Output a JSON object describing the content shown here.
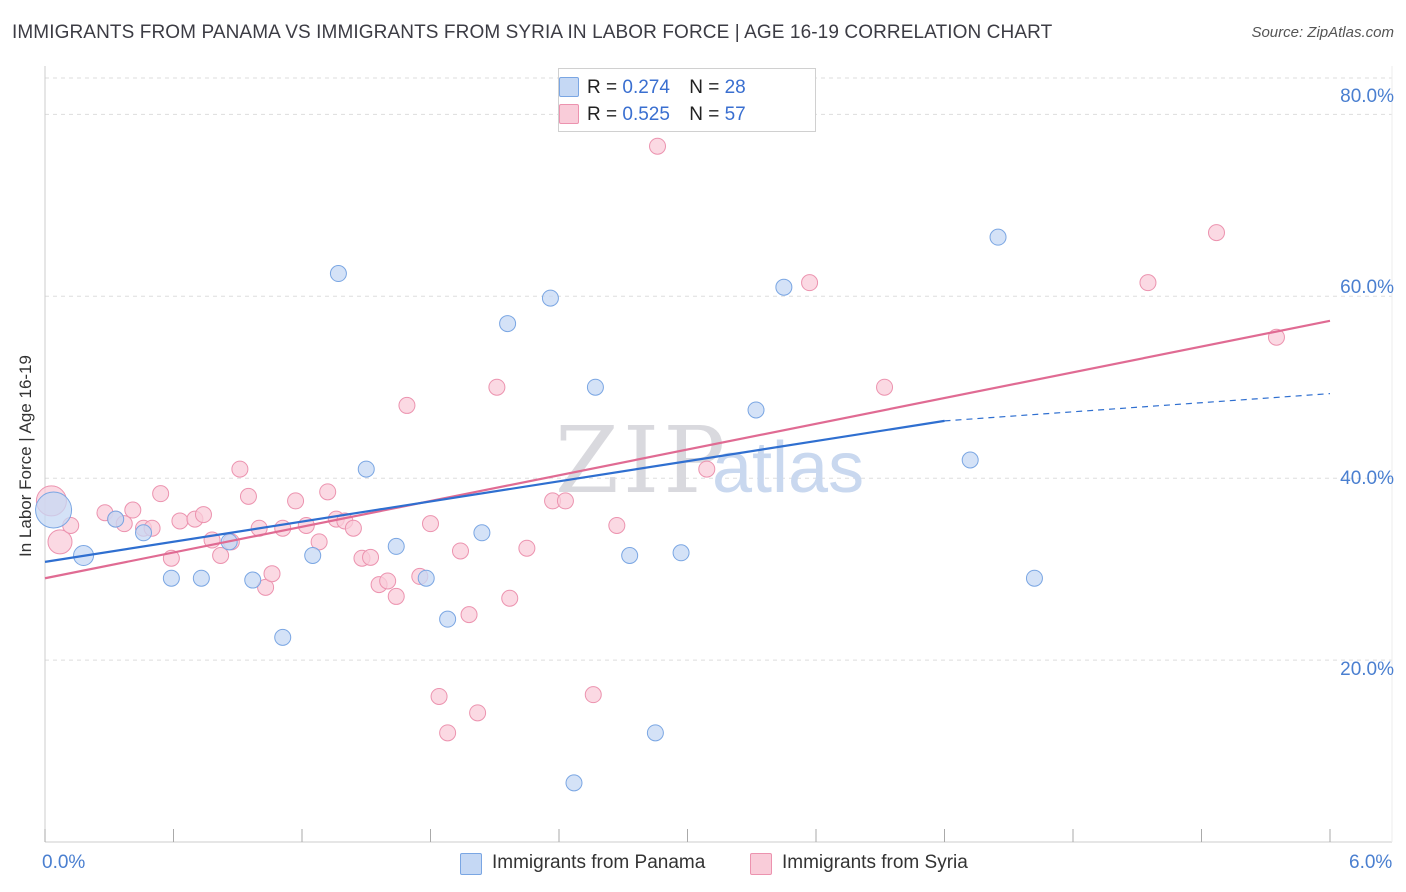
{
  "header": {
    "title": "IMMIGRANTS FROM PANAMA VS IMMIGRANTS FROM SYRIA IN LABOR FORCE | AGE 16-19 CORRELATION CHART",
    "source": "Source: ZipAtlas.com"
  },
  "watermark": {
    "zip": "ZIP",
    "atlas": "atlas"
  },
  "legend": {
    "panama": {
      "r_label": "R =",
      "r_value": "0.274",
      "n_label": "N =",
      "n_value": "28"
    },
    "syria": {
      "r_label": "R =",
      "r_value": "0.525",
      "n_label": "N =",
      "n_value": "57"
    }
  },
  "bottom_legend": {
    "panama": "Immigrants from Panama",
    "syria": "Immigrants from Syria"
  },
  "colors": {
    "panama_fill": "#c5d8f4",
    "panama_stroke": "#7aa6e3",
    "panama_line": "#2f6fd0",
    "syria_fill": "#f9ccd9",
    "syria_stroke": "#ec93af",
    "syria_line": "#e06b93",
    "grid": "#dddddd",
    "tick_text": "#4a7fd0"
  },
  "chart_data": {
    "type": "scatter",
    "title": "IMMIGRANTS FROM PANAMA VS IMMIGRANTS FROM SYRIA IN LABOR FORCE | AGE 16-19 CORRELATION CHART",
    "xlabel": "",
    "ylabel": "In Labor Force | Age 16-19",
    "xlim": [
      0,
      6
    ],
    "ylim": [
      0,
      84
    ],
    "x_tick_labels": [
      "0.0%",
      "6.0%"
    ],
    "y_ticks": [
      20,
      40,
      60,
      80
    ],
    "y_tick_labels": [
      "20.0%",
      "40.0%",
      "60.0%",
      "80.0%"
    ],
    "grid": true,
    "series": [
      {
        "name": "Immigrants from Panama",
        "r": 0.274,
        "n": 28,
        "points": [
          [
            0.04,
            36.5
          ],
          [
            0.18,
            31.5
          ],
          [
            0.33,
            35.5
          ],
          [
            0.46,
            34
          ],
          [
            0.59,
            29
          ],
          [
            0.73,
            29
          ],
          [
            0.86,
            33
          ],
          [
            0.97,
            28.8
          ],
          [
            1.11,
            22.5
          ],
          [
            1.25,
            31.5
          ],
          [
            1.37,
            62.5
          ],
          [
            1.5,
            41
          ],
          [
            1.64,
            32.5
          ],
          [
            1.78,
            29
          ],
          [
            1.88,
            24.5
          ],
          [
            2.04,
            34
          ],
          [
            2.16,
            57
          ],
          [
            2.36,
            59.8
          ],
          [
            2.47,
            6.5
          ],
          [
            2.57,
            50
          ],
          [
            2.73,
            31.5
          ],
          [
            2.85,
            12
          ],
          [
            2.97,
            31.8
          ],
          [
            3.32,
            47.5
          ],
          [
            3.45,
            61
          ],
          [
            4.32,
            42
          ],
          [
            4.45,
            66.5
          ],
          [
            4.62,
            29
          ]
        ],
        "trend": {
          "x_start": 0,
          "y_start": 30.8,
          "x_solid_end": 4.2,
          "y_solid_end": 46.3,
          "x_dash_end": 6,
          "y_dash_end": 49.3
        }
      },
      {
        "name": "Immigrants from Syria",
        "r": 0.525,
        "n": 57,
        "points": [
          [
            0.03,
            37.5
          ],
          [
            0.07,
            33
          ],
          [
            0.12,
            34.8
          ],
          [
            0.28,
            36.2
          ],
          [
            0.33,
            35.5
          ],
          [
            0.37,
            35
          ],
          [
            0.41,
            36.5
          ],
          [
            0.46,
            34.5
          ],
          [
            0.5,
            34.5
          ],
          [
            0.54,
            38.3
          ],
          [
            0.59,
            31.2
          ],
          [
            0.63,
            35.3
          ],
          [
            0.7,
            35.5
          ],
          [
            0.74,
            36
          ],
          [
            0.78,
            33.2
          ],
          [
            0.82,
            31.5
          ],
          [
            0.87,
            33
          ],
          [
            0.91,
            41
          ],
          [
            0.95,
            38
          ],
          [
            1.0,
            34.5
          ],
          [
            1.03,
            28
          ],
          [
            1.06,
            29.5
          ],
          [
            1.11,
            34.5
          ],
          [
            1.17,
            37.5
          ],
          [
            1.22,
            34.8
          ],
          [
            1.28,
            33
          ],
          [
            1.32,
            38.5
          ],
          [
            1.36,
            35.5
          ],
          [
            1.4,
            35.3
          ],
          [
            1.44,
            34.5
          ],
          [
            1.48,
            31.2
          ],
          [
            1.52,
            31.3
          ],
          [
            1.56,
            28.3
          ],
          [
            1.6,
            28.7
          ],
          [
            1.64,
            27
          ],
          [
            1.69,
            48
          ],
          [
            1.75,
            29.2
          ],
          [
            1.8,
            35
          ],
          [
            1.84,
            16
          ],
          [
            1.88,
            12
          ],
          [
            1.94,
            32
          ],
          [
            1.98,
            25
          ],
          [
            2.02,
            14.2
          ],
          [
            2.11,
            50
          ],
          [
            2.17,
            26.8
          ],
          [
            2.25,
            32.3
          ],
          [
            2.37,
            37.5
          ],
          [
            2.43,
            37.5
          ],
          [
            2.56,
            16.2
          ],
          [
            2.67,
            34.8
          ],
          [
            2.86,
            76.5
          ],
          [
            3.09,
            41
          ],
          [
            3.57,
            61.5
          ],
          [
            3.92,
            50
          ],
          [
            5.15,
            61.5
          ],
          [
            5.47,
            67
          ],
          [
            5.75,
            55.5
          ]
        ],
        "trend": {
          "x_start": 0,
          "y_start": 29,
          "x_end": 6,
          "y_end": 57.3
        }
      }
    ]
  }
}
